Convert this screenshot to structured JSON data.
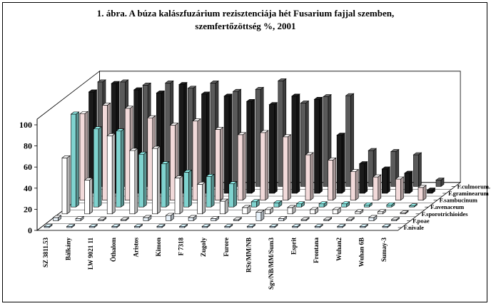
{
  "chart_data": {
    "type": "bar",
    "subtype": "3d-clustered",
    "title_line1": "1. ábra. A búza kalászfuzárium rezisztenciája hét Fusarium fajjal szemben,",
    "title_line2": "szemfertőzöttség %, 2001",
    "categories": [
      "SZ 3811.53",
      "Bálkány",
      "LW 9021 11",
      "Öthalom",
      "Aristos",
      "Kimon",
      "F 7318",
      "Zugoly",
      "Furore",
      "RSt/MM/NB",
      "Sgv/NB/MM/Sum3",
      "Esprit",
      "Frontana",
      "Wuhan2",
      "Wuhan 6B",
      "Sumay-3"
    ],
    "series": [
      {
        "name": "F.nivale",
        "color": "#bcd7ee",
        "values": [
          0,
          0,
          0,
          0,
          0,
          0,
          0,
          0,
          0,
          0,
          0,
          0,
          0,
          0,
          0,
          0
        ]
      },
      {
        "name": "F.poae",
        "color": "#e8f2fa",
        "values": [
          3,
          2,
          1,
          1,
          3,
          5,
          3,
          2,
          1,
          8,
          2,
          1,
          1,
          1,
          3,
          1
        ]
      },
      {
        "name": "F.sporotrichioides",
        "color": "#ffffff",
        "values": [
          53,
          32,
          74,
          60,
          62,
          34,
          28,
          12,
          6,
          4,
          6,
          4,
          4,
          2,
          2,
          1
        ]
      },
      {
        "name": "F.avenaceum",
        "color": "#7fd3cf",
        "values": [
          88,
          74,
          72,
          50,
          41,
          33,
          29,
          22,
          5,
          4,
          3,
          3,
          3,
          2,
          2,
          1
        ]
      },
      {
        "name": "F.sambucinum",
        "color": "#f2dada",
        "values": [
          82,
          90,
          87,
          78,
          71,
          75,
          67,
          62,
          64,
          60,
          43,
          38,
          27,
          22,
          20,
          12
        ]
      },
      {
        "name": "F.graminearum",
        "color": "#1a1a1a",
        "values": [
          96,
          104,
          98,
          95,
          103,
          94,
          92,
          87,
          84,
          92,
          89,
          55,
          28,
          23,
          19,
          3
        ]
      },
      {
        "name": "F.culmorum.",
        "color": "#5a5a5a",
        "values": [
          99,
          99,
          96,
          98,
          93,
          98,
          90,
          92,
          100,
          79,
          85,
          86,
          34,
          33,
          30,
          6
        ]
      }
    ],
    "yaxis": {
      "min": 0,
      "max": 100,
      "ticks": [
        0,
        20,
        40,
        60,
        80,
        100
      ]
    },
    "grid": false,
    "legend": "none (series names printed along depth axis)"
  }
}
